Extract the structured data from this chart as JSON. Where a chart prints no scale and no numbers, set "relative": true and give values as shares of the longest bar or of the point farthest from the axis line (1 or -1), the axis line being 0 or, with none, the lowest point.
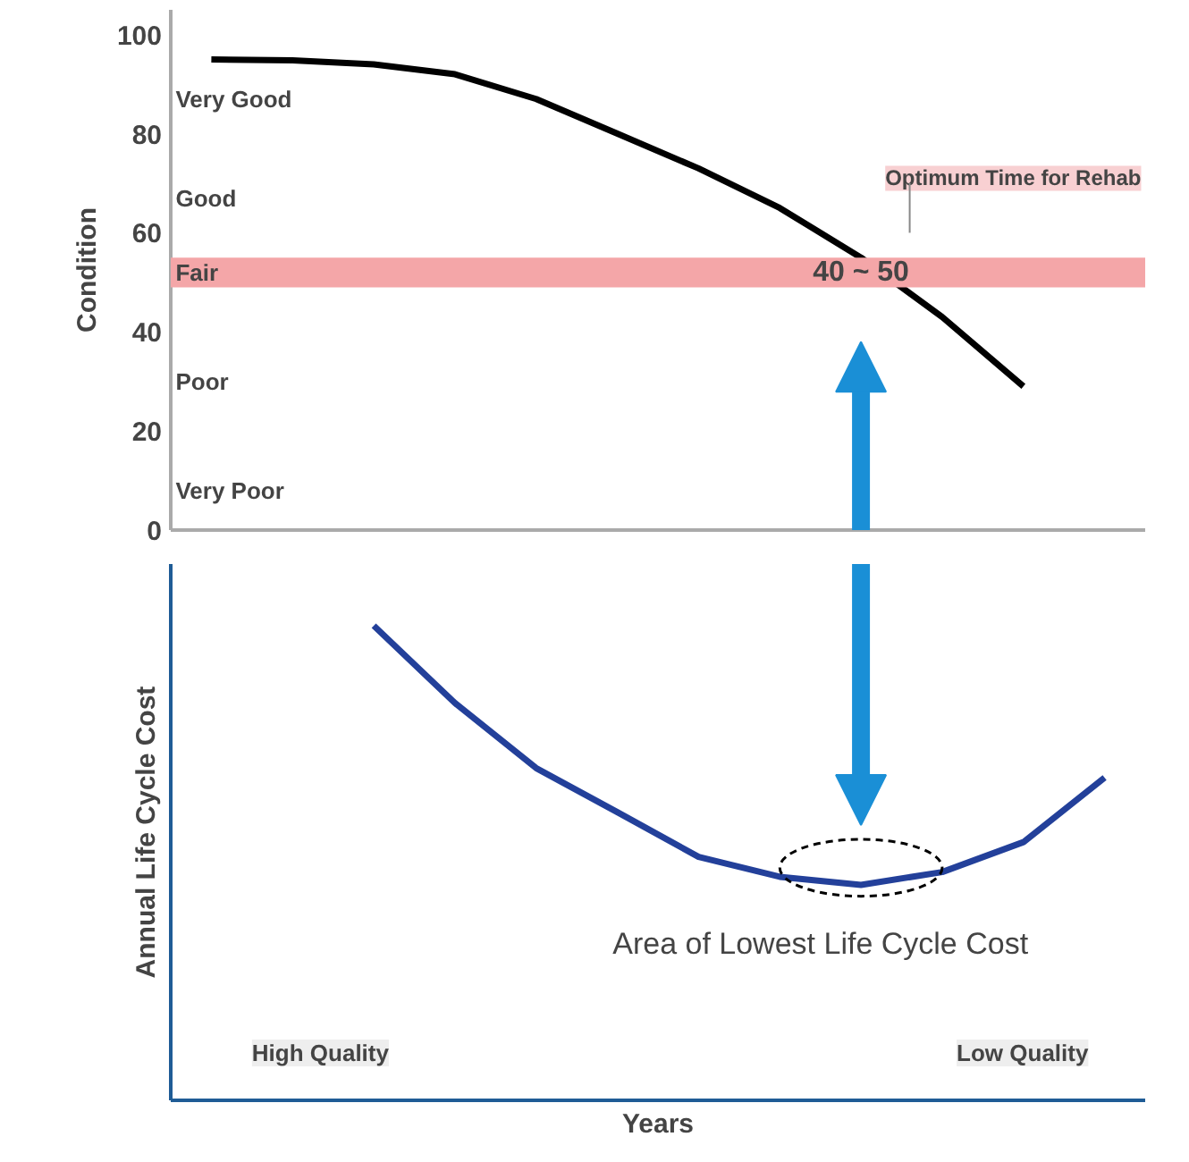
{
  "chart_data": [
    {
      "type": "line",
      "ylabel": "Condition",
      "categories": [
        null,
        null,
        null,
        null,
        null,
        null,
        null,
        null,
        null,
        null,
        null,
        null
      ],
      "series": [
        {
          "color": "#000000",
          "values": [
            95,
            94.8,
            94,
            92,
            87,
            80,
            73,
            65,
            55,
            43,
            29,
            null
          ]
        }
      ],
      "ylim": [
        0,
        105
      ],
      "yticks": [
        0,
        20,
        40,
        60,
        80,
        100
      ],
      "grid": false,
      "tick_labels": "y",
      "bands": [
        {
          "axis": "y",
          "from": 49,
          "to": 55,
          "label": "Fair",
          "color": "#f4a6a8"
        }
      ],
      "annotations": [
        "Very Good",
        "Good",
        "Poor",
        "Very Poor",
        "40 ~ 50",
        "Optimum Time for Rehab"
      ]
    },
    {
      "type": "line",
      "relative": true,
      "xlabel": "Years",
      "ylabel": "Annual Life Cycle Cost",
      "categories": [
        null,
        null,
        null,
        null,
        null,
        null,
        null,
        null,
        null,
        null,
        null,
        null
      ],
      "series": [
        {
          "color": "#23409a",
          "values": [
            null,
            null,
            1,
            0.837,
            0.7,
            0.607,
            0.513,
            0.471,
            0.454,
            0.481,
            0.544,
            0.68
          ]
        }
      ],
      "grid": false,
      "tick_labels": false,
      "annotations": [
        "Area of Lowest Life Cycle Cost",
        "High Quality",
        "Low Quality"
      ]
    }
  ]
}
